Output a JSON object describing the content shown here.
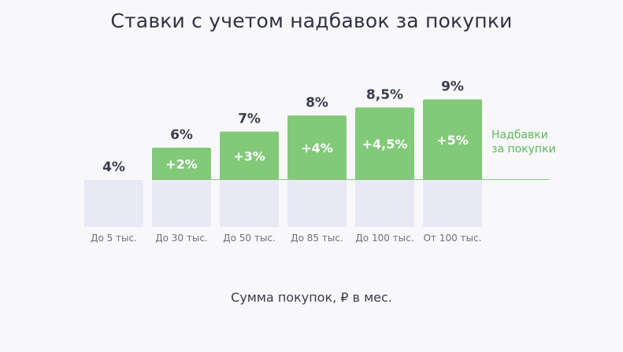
{
  "chart_data": {
    "type": "bar",
    "title": "Ставки с учетом надбавок за покупки",
    "xlabel": "Сумма покупок, ₽ в мес.",
    "categories": [
      "До 5 тыс.",
      "До 30 тыс.",
      "До 50 тыс.",
      "До 85 тыс.",
      "До 100 тыс.",
      "От 100 тыс."
    ],
    "base_rate": 4,
    "series": [
      {
        "name": "",
        "values": [
          4,
          4,
          4,
          4,
          4,
          4
        ]
      },
      {
        "name": "Надбавки за покупки",
        "values": [
          0,
          2,
          3,
          4,
          4.5,
          5
        ]
      }
    ],
    "total_labels": [
      "4%",
      "6%",
      "7%",
      "8%",
      "8,5%",
      "9%"
    ],
    "bonus_labels": [
      "",
      "+2%",
      "+3%",
      "+4%",
      "+4,5%",
      "+5%"
    ],
    "legend": [
      "Надбавки",
      "за покупки"
    ],
    "colors": {
      "base": "#e9e8f5",
      "bonus": "#82c97a",
      "legend": "#5cb85c"
    }
  }
}
